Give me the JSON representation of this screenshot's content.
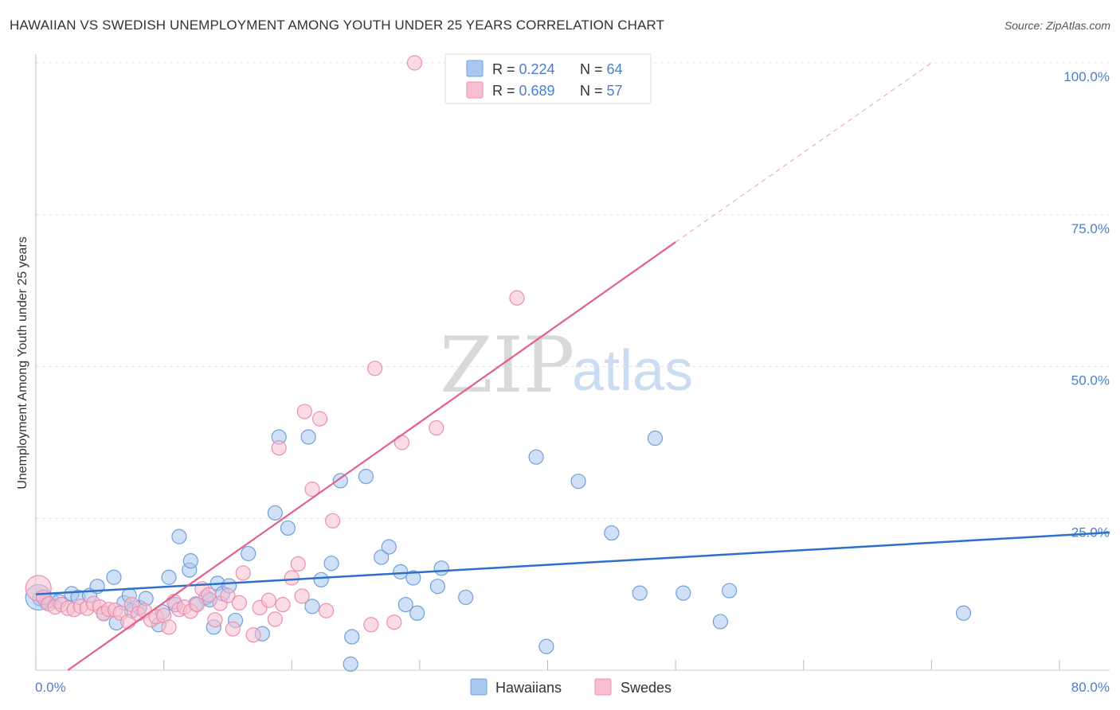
{
  "title": "HAWAIIAN VS SWEDISH UNEMPLOYMENT AMONG YOUTH UNDER 25 YEARS CORRELATION CHART",
  "source": "Source: ZipAtlas.com",
  "watermark": {
    "zip": "ZIP",
    "atlas": "atlas"
  },
  "colors": {
    "hawaiians_fill": "#a9c8f0",
    "hawaiians_stroke": "#6f9fdc",
    "hawaiians_line": "#2f6fcc",
    "swedes_fill": "#f7bfd0",
    "swedes_stroke": "#ec8fae",
    "swedes_line": "#e0608a",
    "value_text": "#4a7fd0"
  },
  "legend": {
    "rows": [
      {
        "r_label": "R = ",
        "r_value": "0.224",
        "n_label": "N = ",
        "n_value": "64"
      },
      {
        "r_label": "R = ",
        "r_value": "0.689",
        "n_label": "N = ",
        "n_value": "57"
      }
    ]
  },
  "chart_data": {
    "type": "scatter",
    "title": "HAWAIIAN VS SWEDISH UNEMPLOYMENT AMONG YOUTH UNDER 25 YEARS CORRELATION CHART",
    "xlabel": "",
    "ylabel": "Unemployment Among Youth under 25 years",
    "xlim": [
      0,
      80
    ],
    "ylim": [
      0,
      100
    ],
    "x_tick_labels": [
      "0.0%",
      "80.0%"
    ],
    "y_ticks": [
      25,
      50,
      75,
      100
    ],
    "y_tick_labels": [
      "25.0%",
      "50.0%",
      "75.0%",
      "100.0%"
    ],
    "grid": true,
    "legend_position": "top-center",
    "series": [
      {
        "name": "Hawaiians",
        "r": 0.224,
        "n": 64,
        "trend": {
          "x": [
            0,
            80
          ],
          "y": [
            12.5,
            22.2
          ],
          "style": "solid"
        },
        "points": [
          [
            0.3,
            11.8
          ],
          [
            0.8,
            11.2
          ],
          [
            1.2,
            11.5
          ],
          [
            1.8,
            11.3
          ],
          [
            2.8,
            12.6
          ],
          [
            3.3,
            12.0
          ],
          [
            4.2,
            12.3
          ],
          [
            4.8,
            13.8
          ],
          [
            5.3,
            9.4
          ],
          [
            6.1,
            15.3
          ],
          [
            6.3,
            7.8
          ],
          [
            6.9,
            11.1
          ],
          [
            7.3,
            12.3
          ],
          [
            7.5,
            9.8
          ],
          [
            8.1,
            10.3
          ],
          [
            8.6,
            11.8
          ],
          [
            9.6,
            7.5
          ],
          [
            9.9,
            9.6
          ],
          [
            10.4,
            15.3
          ],
          [
            10.9,
            10.8
          ],
          [
            11.2,
            22.0
          ],
          [
            12.0,
            16.5
          ],
          [
            12.1,
            18.0
          ],
          [
            12.5,
            10.9
          ],
          [
            13.3,
            12.0
          ],
          [
            13.6,
            11.6
          ],
          [
            13.9,
            7.1
          ],
          [
            14.2,
            14.3
          ],
          [
            14.6,
            12.6
          ],
          [
            15.1,
            13.9
          ],
          [
            15.6,
            8.2
          ],
          [
            16.6,
            19.2
          ],
          [
            17.7,
            6.0
          ],
          [
            18.7,
            25.9
          ],
          [
            19.0,
            38.4
          ],
          [
            19.7,
            23.4
          ],
          [
            21.3,
            38.4
          ],
          [
            21.6,
            10.5
          ],
          [
            22.3,
            14.9
          ],
          [
            23.1,
            17.6
          ],
          [
            23.8,
            31.2
          ],
          [
            24.6,
            1.0
          ],
          [
            24.7,
            5.5
          ],
          [
            25.8,
            31.9
          ],
          [
            27.0,
            18.6
          ],
          [
            27.6,
            20.3
          ],
          [
            28.5,
            16.2
          ],
          [
            28.9,
            10.8
          ],
          [
            29.5,
            15.2
          ],
          [
            29.8,
            9.4
          ],
          [
            31.4,
            13.8
          ],
          [
            31.7,
            16.8
          ],
          [
            33.6,
            12.0
          ],
          [
            39.1,
            35.1
          ],
          [
            39.9,
            3.9
          ],
          [
            42.4,
            31.1
          ],
          [
            45.0,
            22.6
          ],
          [
            47.2,
            12.7
          ],
          [
            48.4,
            38.2
          ],
          [
            50.6,
            12.7
          ],
          [
            53.5,
            8.0
          ],
          [
            54.2,
            13.1
          ],
          [
            72.5,
            9.4
          ],
          [
            0.2,
            12.0
          ]
        ]
      },
      {
        "name": "Swedes",
        "r": 0.689,
        "n": 57,
        "trend": {
          "x": [
            2.5,
            50.0
          ],
          "y": [
            0.0,
            70.5
          ],
          "style": "solid",
          "extension": {
            "x": [
              50.0,
              70.0
            ],
            "y": [
              70.5,
              100.0
            ],
            "style": "dashed"
          }
        },
        "points": [
          [
            0.2,
            13.5
          ],
          [
            0.6,
            12.0
          ],
          [
            1.0,
            10.9
          ],
          [
            1.5,
            10.4
          ],
          [
            2.0,
            10.8
          ],
          [
            2.5,
            10.2
          ],
          [
            3.0,
            10.0
          ],
          [
            3.5,
            10.5
          ],
          [
            4.0,
            10.2
          ],
          [
            4.5,
            11.0
          ],
          [
            5.0,
            10.4
          ],
          [
            5.3,
            9.3
          ],
          [
            5.7,
            10.0
          ],
          [
            6.2,
            9.9
          ],
          [
            6.6,
            9.4
          ],
          [
            7.2,
            8.0
          ],
          [
            7.5,
            10.8
          ],
          [
            8.0,
            9.3
          ],
          [
            8.5,
            9.8
          ],
          [
            9.0,
            8.3
          ],
          [
            9.4,
            8.8
          ],
          [
            10.0,
            9.0
          ],
          [
            10.4,
            7.1
          ],
          [
            10.8,
            11.3
          ],
          [
            11.2,
            10.0
          ],
          [
            11.6,
            10.4
          ],
          [
            12.1,
            9.7
          ],
          [
            12.6,
            10.8
          ],
          [
            13.0,
            13.4
          ],
          [
            13.5,
            12.4
          ],
          [
            14.0,
            8.3
          ],
          [
            14.4,
            11.0
          ],
          [
            15.0,
            12.3
          ],
          [
            15.4,
            6.8
          ],
          [
            15.9,
            11.1
          ],
          [
            16.2,
            16.0
          ],
          [
            17.0,
            5.8
          ],
          [
            17.5,
            10.3
          ],
          [
            18.2,
            11.5
          ],
          [
            18.7,
            8.4
          ],
          [
            19.0,
            36.6
          ],
          [
            19.3,
            10.8
          ],
          [
            20.0,
            15.2
          ],
          [
            20.5,
            17.5
          ],
          [
            20.8,
            12.2
          ],
          [
            21.0,
            42.6
          ],
          [
            21.6,
            29.8
          ],
          [
            22.2,
            41.4
          ],
          [
            22.7,
            9.8
          ],
          [
            23.2,
            24.6
          ],
          [
            26.2,
            7.5
          ],
          [
            26.5,
            49.7
          ],
          [
            28.0,
            7.9
          ],
          [
            28.6,
            37.5
          ],
          [
            29.6,
            100.0
          ],
          [
            31.3,
            39.9
          ],
          [
            37.6,
            61.3
          ]
        ]
      }
    ]
  },
  "series_labels": [
    "Hawaiians",
    "Swedes"
  ]
}
